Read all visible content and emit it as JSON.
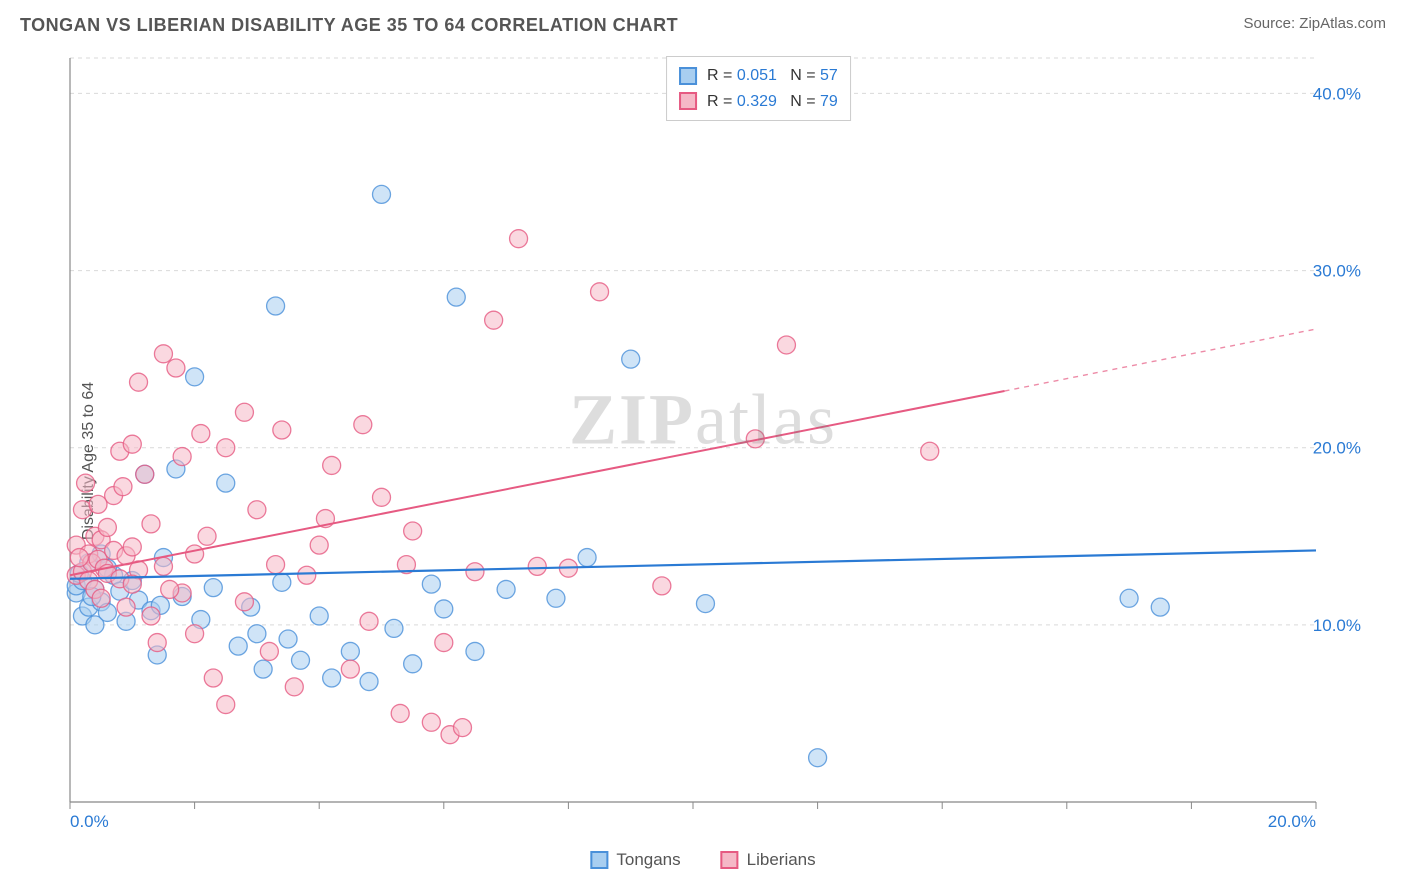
{
  "title": "TONGAN VS LIBERIAN DISABILITY AGE 35 TO 64 CORRELATION CHART",
  "source": "Source: ZipAtlas.com",
  "ylabel": "Disability Age 35 to 64",
  "watermark": "ZIPatlas",
  "chart": {
    "type": "scatter",
    "xlim": [
      0,
      20
    ],
    "ylim": [
      0,
      42
    ],
    "x_ticks": [
      0,
      2,
      4,
      6,
      8,
      10,
      12,
      14,
      16,
      18,
      20
    ],
    "x_tick_labels": {
      "0": "0.0%",
      "20": "20.0%"
    },
    "y_ticks": [
      10,
      20,
      30,
      40
    ],
    "y_tick_labels": {
      "10": "10.0%",
      "20": "20.0%",
      "30": "30.0%",
      "40": "40.0%"
    },
    "grid_color": "#d9d9d9",
    "background_color": "#ffffff",
    "axis_color": "#888888",
    "label_color": "#2a7ad4",
    "marker_radius": 9,
    "marker_opacity": 0.55,
    "series": [
      {
        "name": "Tongans",
        "fill": "#a8cef0",
        "stroke": "#4a90d9",
        "r_value": "0.051",
        "n_value": "57",
        "trend": {
          "x0": 0,
          "y0": 12.6,
          "x1": 20,
          "y1": 14.2,
          "dash_from": 20,
          "color": "#2a7ad4",
          "width": 2.2
        },
        "points": [
          [
            0.1,
            11.8
          ],
          [
            0.1,
            12.2
          ],
          [
            0.2,
            10.5
          ],
          [
            0.2,
            12.5
          ],
          [
            0.3,
            11.0
          ],
          [
            0.3,
            13.5
          ],
          [
            0.4,
            12.0
          ],
          [
            0.4,
            10.0
          ],
          [
            0.5,
            11.3
          ],
          [
            0.5,
            14.0
          ],
          [
            0.6,
            10.7
          ],
          [
            0.7,
            12.8
          ],
          [
            0.8,
            11.9
          ],
          [
            0.9,
            10.2
          ],
          [
            1.0,
            12.5
          ],
          [
            1.1,
            11.4
          ],
          [
            1.2,
            18.5
          ],
          [
            1.3,
            10.8
          ],
          [
            1.4,
            8.3
          ],
          [
            1.5,
            13.8
          ],
          [
            1.7,
            18.8
          ],
          [
            1.8,
            11.6
          ],
          [
            2.0,
            24.0
          ],
          [
            2.1,
            10.3
          ],
          [
            2.3,
            12.1
          ],
          [
            2.5,
            18.0
          ],
          [
            2.7,
            8.8
          ],
          [
            2.9,
            11.0
          ],
          [
            3.0,
            9.5
          ],
          [
            3.1,
            7.5
          ],
          [
            3.3,
            28.0
          ],
          [
            3.5,
            9.2
          ],
          [
            3.7,
            8.0
          ],
          [
            4.0,
            10.5
          ],
          [
            4.2,
            7.0
          ],
          [
            4.5,
            8.5
          ],
          [
            4.8,
            6.8
          ],
          [
            5.0,
            34.3
          ],
          [
            5.2,
            9.8
          ],
          [
            5.5,
            7.8
          ],
          [
            5.8,
            12.3
          ],
          [
            6.0,
            10.9
          ],
          [
            6.2,
            28.5
          ],
          [
            6.5,
            8.5
          ],
          [
            7.0,
            12.0
          ],
          [
            7.8,
            11.5
          ],
          [
            8.3,
            13.8
          ],
          [
            9.0,
            25.0
          ],
          [
            10.2,
            11.2
          ],
          [
            12.0,
            2.5
          ],
          [
            17.0,
            11.5
          ],
          [
            17.5,
            11.0
          ],
          [
            0.15,
            12.9
          ],
          [
            0.35,
            11.6
          ],
          [
            0.6,
            13.2
          ],
          [
            1.45,
            11.1
          ],
          [
            3.4,
            12.4
          ]
        ]
      },
      {
        "name": "Liberians",
        "fill": "#f5b8c7",
        "stroke": "#e65a82",
        "r_value": "0.329",
        "n_value": "79",
        "trend": {
          "x0": 0,
          "y0": 12.8,
          "x1": 15,
          "y1": 23.2,
          "dash_from": 15,
          "dash_to_x": 20,
          "dash_to_y": 26.7,
          "color": "#e65a82",
          "width": 2.0
        },
        "points": [
          [
            0.1,
            12.8
          ],
          [
            0.1,
            14.5
          ],
          [
            0.2,
            13.0
          ],
          [
            0.2,
            16.5
          ],
          [
            0.25,
            18.0
          ],
          [
            0.3,
            12.5
          ],
          [
            0.3,
            14.0
          ],
          [
            0.35,
            13.5
          ],
          [
            0.4,
            12.0
          ],
          [
            0.4,
            15.0
          ],
          [
            0.45,
            13.7
          ],
          [
            0.5,
            11.5
          ],
          [
            0.5,
            14.8
          ],
          [
            0.55,
            13.2
          ],
          [
            0.6,
            15.5
          ],
          [
            0.6,
            12.9
          ],
          [
            0.7,
            14.2
          ],
          [
            0.7,
            17.3
          ],
          [
            0.8,
            12.6
          ],
          [
            0.8,
            19.8
          ],
          [
            0.9,
            13.9
          ],
          [
            0.9,
            11.0
          ],
          [
            1.0,
            14.4
          ],
          [
            1.0,
            20.2
          ],
          [
            1.1,
            13.1
          ],
          [
            1.1,
            23.7
          ],
          [
            1.2,
            18.5
          ],
          [
            1.3,
            10.5
          ],
          [
            1.3,
            15.7
          ],
          [
            1.4,
            9.0
          ],
          [
            1.5,
            13.3
          ],
          [
            1.5,
            25.3
          ],
          [
            1.7,
            24.5
          ],
          [
            1.8,
            19.5
          ],
          [
            1.8,
            11.8
          ],
          [
            2.0,
            14.0
          ],
          [
            2.0,
            9.5
          ],
          [
            2.2,
            15.0
          ],
          [
            2.3,
            7.0
          ],
          [
            2.5,
            20.0
          ],
          [
            2.5,
            5.5
          ],
          [
            2.8,
            22.0
          ],
          [
            3.0,
            16.5
          ],
          [
            3.2,
            8.5
          ],
          [
            3.4,
            21.0
          ],
          [
            3.6,
            6.5
          ],
          [
            3.8,
            12.8
          ],
          [
            4.0,
            14.5
          ],
          [
            4.2,
            19.0
          ],
          [
            4.5,
            7.5
          ],
          [
            4.8,
            10.2
          ],
          [
            5.0,
            17.2
          ],
          [
            5.3,
            5.0
          ],
          [
            5.5,
            15.3
          ],
          [
            5.8,
            4.5
          ],
          [
            6.0,
            9.0
          ],
          [
            6.1,
            3.8
          ],
          [
            6.3,
            4.2
          ],
          [
            6.5,
            13.0
          ],
          [
            6.8,
            27.2
          ],
          [
            7.2,
            31.8
          ],
          [
            7.5,
            13.3
          ],
          [
            8.0,
            13.2
          ],
          [
            8.5,
            28.8
          ],
          [
            9.5,
            12.2
          ],
          [
            11.0,
            20.5
          ],
          [
            11.5,
            25.8
          ],
          [
            13.8,
            19.8
          ],
          [
            1.0,
            12.3
          ],
          [
            1.6,
            12.0
          ],
          [
            2.1,
            20.8
          ],
          [
            2.8,
            11.3
          ],
          [
            3.3,
            13.4
          ],
          [
            4.1,
            16.0
          ],
          [
            4.7,
            21.3
          ],
          [
            0.15,
            13.8
          ],
          [
            0.45,
            16.8
          ],
          [
            0.85,
            17.8
          ],
          [
            5.4,
            13.4
          ]
        ]
      }
    ]
  },
  "legend_bottom": [
    {
      "label": "Tongans",
      "fill": "#a8cef0",
      "stroke": "#4a90d9"
    },
    {
      "label": "Liberians",
      "fill": "#f5b8c7",
      "stroke": "#e65a82"
    }
  ]
}
